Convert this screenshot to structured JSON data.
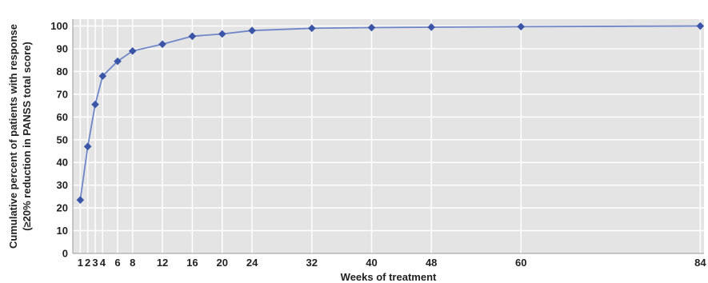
{
  "chart_data": {
    "type": "line",
    "title": "",
    "xlabel": "Weeks of treatment",
    "ylabel_line1": "Cumulative percent of patients with response",
    "ylabel_line2": "(≥20% reduction in PANSS total score)",
    "x_ticks": [
      1,
      2,
      3,
      4,
      6,
      8,
      12,
      16,
      20,
      24,
      32,
      40,
      48,
      60,
      84
    ],
    "y_ticks": [
      0,
      10,
      20,
      30,
      40,
      50,
      60,
      70,
      80,
      90,
      100
    ],
    "xlim": [
      0,
      84.5
    ],
    "ylim": [
      0,
      103
    ],
    "grid": true,
    "series": [
      {
        "x": [
          1,
          2,
          3,
          4,
          6,
          8,
          12,
          16,
          20,
          24,
          32,
          40,
          48,
          60,
          84
        ],
        "values": [
          23.5,
          47,
          65.5,
          78,
          84.5,
          89,
          92,
          95.5,
          96.5,
          98,
          99,
          99.3,
          99.5,
          99.7,
          100
        ]
      }
    ],
    "colors": {
      "plot_background": "#e4e4e4",
      "grid": "#ffffff",
      "line": "#6f86c8",
      "marker": "#3a55a8"
    }
  }
}
